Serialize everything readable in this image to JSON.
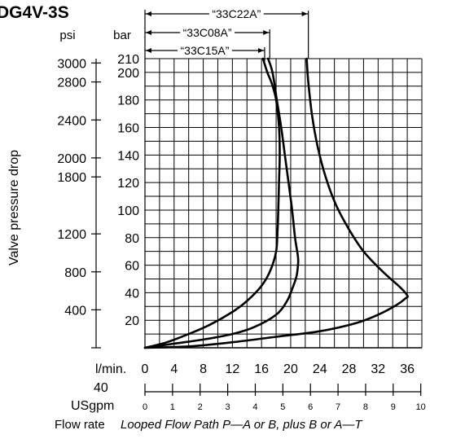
{
  "title": "DG4V-3S",
  "units": {
    "psi": "psi",
    "bar": "bar",
    "lpm": "l/min.",
    "usgpm": "USgpm"
  },
  "ylabel": "Valve pressure drop",
  "caption": {
    "label": "Flow rate",
    "detail": "Looped Flow Path P—A or B, plus B or A—T"
  },
  "extra_tick": "40",
  "chart_data": {
    "type": "line",
    "title": "DG4V-3S",
    "xlabel": "Flow rate  Looped Flow Path P—A or B, plus B or A—T",
    "ylabel": "Valve pressure drop",
    "x_unit": "l/min.",
    "y_unit": "bar",
    "xlim": [
      0,
      38
    ],
    "ylim": [
      0,
      210
    ],
    "grid": true,
    "x_ticks": [
      "0",
      "4",
      "8",
      "12",
      "16",
      "20",
      "24",
      "28",
      "32",
      "36"
    ],
    "bar_ticks": [
      "210",
      "200",
      "180",
      "160",
      "140",
      "120",
      "100",
      "80",
      "60",
      "40",
      "20"
    ],
    "psi_ticks": [
      "3000",
      "2800",
      "2400",
      "2000",
      "1800",
      "1200",
      "800",
      "400"
    ],
    "psi_values": [
      3000,
      2800,
      2400,
      2000,
      1800,
      1200,
      800,
      400
    ],
    "usgpm_ticks": [
      "0",
      "1",
      "2",
      "3",
      "4",
      "5",
      "6",
      "7",
      "8",
      "9",
      "10"
    ],
    "usgpm_values": [
      0,
      1,
      2,
      3,
      4,
      5,
      6,
      7,
      8,
      9,
      10
    ],
    "series": [
      {
        "name": "“33C15A”",
        "x": [
          0,
          3,
          6,
          9,
          12,
          14,
          16,
          17.2,
          18,
          18.2,
          18.3,
          18.4,
          18.5,
          18.4,
          18.0,
          17.4,
          16.8,
          16.2
        ],
        "y": [
          0,
          4,
          10,
          17,
          26,
          34,
          45,
          56,
          70,
          85,
          100,
          120,
          140,
          160,
          180,
          192,
          200,
          210
        ]
      },
      {
        "name": "“33C08A”",
        "x": [
          0,
          4,
          8,
          12,
          15,
          18,
          19.5,
          20.3,
          20.8,
          21,
          21,
          20.6,
          20.2,
          19.7,
          19.2,
          18.7,
          18.1,
          17.5,
          16.9
        ],
        "y": [
          0,
          3,
          6,
          10,
          15,
          24,
          34,
          44,
          52,
          60,
          66,
          80,
          100,
          120,
          140,
          160,
          180,
          200,
          210
        ]
      },
      {
        "name": "“33C22A”",
        "x": [
          0,
          6,
          12,
          18,
          24,
          29,
          32,
          34.5,
          35.8,
          36,
          35,
          32.5,
          30,
          28,
          26.2,
          24.8,
          23.7,
          22.9,
          22.4,
          22.2
        ],
        "y": [
          0,
          1,
          4,
          8,
          12,
          18,
          24,
          31,
          36,
          38,
          44,
          56,
          70,
          86,
          104,
          124,
          146,
          170,
          194,
          210
        ]
      }
    ]
  }
}
